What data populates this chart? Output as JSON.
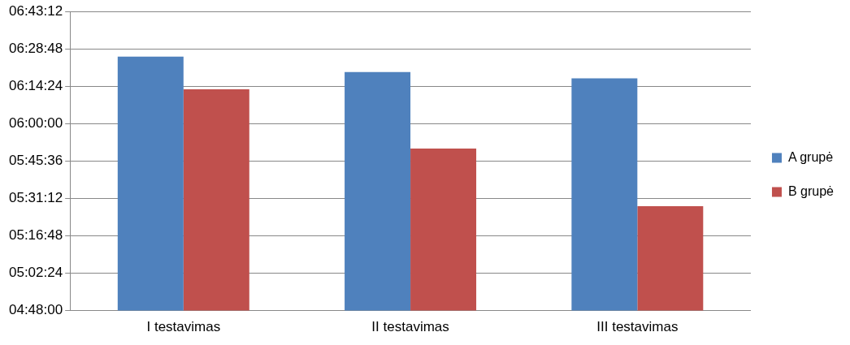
{
  "chart_data": {
    "type": "bar",
    "categories": [
      "I testavimas",
      "II testavimas",
      "III testavimas"
    ],
    "series": [
      {
        "name": "A grupė",
        "color": "#4f81bd",
        "values": [
          6.43,
          6.33,
          6.29
        ]
      },
      {
        "name": "B grupė",
        "color": "#c0504d",
        "values": [
          6.22,
          5.84,
          5.47
        ]
      }
    ],
    "ylim": [
      4.8,
      6.72
    ],
    "yticks": [
      {
        "value": 4.8,
        "label": "04:48:00"
      },
      {
        "value": 5.04,
        "label": "05:02:24"
      },
      {
        "value": 5.28,
        "label": "05:16:48"
      },
      {
        "value": 5.52,
        "label": "05:31:12"
      },
      {
        "value": 5.76,
        "label": "05:45:36"
      },
      {
        "value": 6.0,
        "label": "06:00:00"
      },
      {
        "value": 6.24,
        "label": "06:14:24"
      },
      {
        "value": 6.48,
        "label": "06:28:48"
      },
      {
        "value": 6.72,
        "label": "06:43:12"
      }
    ],
    "grid": "y",
    "legend": "right"
  }
}
